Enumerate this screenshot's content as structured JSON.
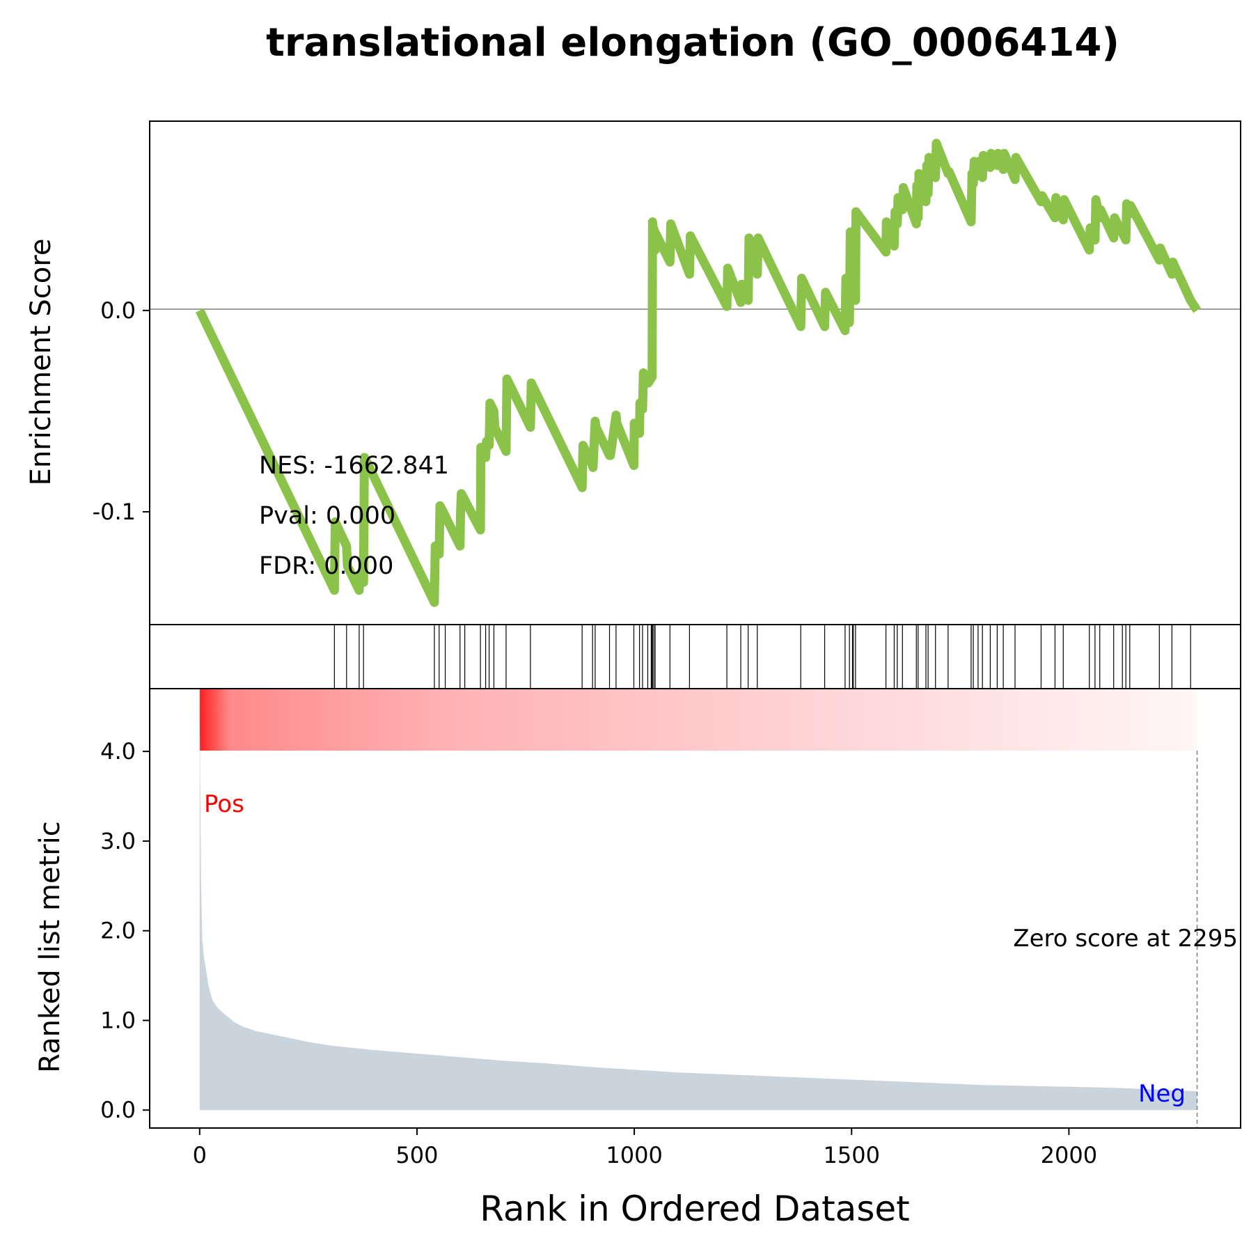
{
  "chart_data": {
    "type": "line",
    "title": "translational elongation (GO_0006414)",
    "n_genes": 2295,
    "xlabel": "Rank in Ordered Dataset",
    "xlim": [
      -115,
      2395
    ],
    "xticks": [
      0,
      500,
      1000,
      1500,
      2000
    ],
    "enrichment_panel": {
      "ylabel": "Enrichment Score",
      "ylim": [
        -0.156,
        0.094
      ],
      "yticks": [
        0.0,
        -0.1
      ],
      "ytick_labels": [
        "0.0",
        "-0.1"
      ],
      "line_color": "#8bc34a",
      "zero_line": true,
      "stats": [
        "NES: -1662.841",
        "Pval: 0.000",
        "FDR: 0.000"
      ],
      "es_curve": {
        "x": [
          0,
          310,
          312,
          338,
          340,
          367,
          368,
          377,
          379,
          386,
          540,
          542,
          551,
          553,
          565,
          567,
          599,
          600,
          602,
          610,
          612,
          646,
          647,
          658,
          660,
          666,
          668,
          677,
          679,
          705,
          707,
          761,
          763,
          880,
          882,
          904,
          905,
          910,
          912,
          943,
          945,
          958,
          960,
          999,
          1000,
          1012,
          1013,
          1019,
          1021,
          1031,
          1032,
          1041,
          1042,
          1045,
          1046,
          1048,
          1050,
          1082,
          1084,
          1127,
          1129,
          1213,
          1215,
          1245,
          1247,
          1262,
          1264,
          1283,
          1285,
          1383,
          1385,
          1438,
          1440,
          1485,
          1487,
          1495,
          1497,
          1502,
          1504,
          1509,
          1510,
          1579,
          1580,
          1598,
          1600,
          1605,
          1607,
          1617,
          1619,
          1649,
          1650,
          1653,
          1655,
          1671,
          1673,
          1676,
          1678,
          1693,
          1695,
          1722,
          1724,
          1775,
          1777,
          1780,
          1782,
          1791,
          1793,
          1801,
          1803,
          1819,
          1821,
          1835,
          1837,
          1849,
          1851,
          1876,
          1878,
          1936,
          1938,
          1968,
          1970,
          1987,
          1989,
          2047,
          2049,
          2060,
          2062,
          2071,
          2073,
          2103,
          2105,
          2131,
          2133,
          2140,
          2142,
          2208,
          2210,
          2237,
          2239,
          2280,
          2295
        ],
        "y": [
          0.0,
          -0.139,
          -0.105,
          -0.117,
          -0.127,
          -0.139,
          -0.131,
          -0.135,
          -0.073,
          -0.076,
          -0.145,
          -0.117,
          -0.121,
          -0.097,
          -0.102,
          -0.103,
          -0.117,
          -0.102,
          -0.091,
          -0.094,
          -0.095,
          -0.109,
          -0.068,
          -0.073,
          -0.065,
          -0.067,
          -0.046,
          -0.05,
          -0.058,
          -0.07,
          -0.034,
          -0.058,
          -0.036,
          -0.088,
          -0.067,
          -0.077,
          -0.078,
          -0.055,
          -0.058,
          -0.072,
          -0.072,
          -0.052,
          -0.056,
          -0.077,
          -0.056,
          -0.061,
          -0.046,
          -0.049,
          -0.031,
          -0.035,
          -0.036,
          -0.033,
          0.044,
          0.038,
          0.04,
          0.03,
          0.038,
          0.024,
          0.043,
          0.018,
          0.037,
          0.002,
          0.021,
          0.004,
          0.013,
          0.005,
          0.036,
          0.018,
          0.036,
          -0.008,
          0.016,
          -0.008,
          0.009,
          -0.01,
          0.016,
          -0.006,
          0.039,
          0.013,
          0.032,
          0.005,
          0.049,
          0.029,
          0.044,
          0.032,
          0.049,
          0.043,
          0.056,
          0.05,
          0.061,
          0.043,
          0.062,
          0.046,
          0.068,
          0.054,
          0.072,
          0.058,
          0.076,
          0.066,
          0.083,
          0.068,
          0.069,
          0.044,
          0.068,
          0.063,
          0.074,
          0.067,
          0.074,
          0.066,
          0.077,
          0.071,
          0.078,
          0.072,
          0.078,
          0.07,
          0.078,
          0.065,
          0.076,
          0.054,
          0.057,
          0.046,
          0.056,
          0.045,
          0.055,
          0.03,
          0.041,
          0.035,
          0.055,
          0.046,
          0.05,
          0.036,
          0.046,
          0.035,
          0.053,
          0.048,
          0.052,
          0.025,
          0.031,
          0.018,
          0.024,
          0.005,
          0.0
        ]
      }
    },
    "hits_panel": {
      "hit_ranks": [
        310,
        338,
        367,
        377,
        540,
        551,
        565,
        599,
        610,
        646,
        658,
        666,
        677,
        705,
        761,
        880,
        904,
        910,
        943,
        958,
        999,
        1012,
        1019,
        1031,
        1039,
        1041,
        1042,
        1045,
        1048,
        1082,
        1127,
        1213,
        1245,
        1262,
        1283,
        1383,
        1438,
        1485,
        1495,
        1502,
        1504,
        1509,
        1579,
        1598,
        1605,
        1617,
        1649,
        1653,
        1671,
        1676,
        1693,
        1722,
        1775,
        1780,
        1791,
        1801,
        1819,
        1835,
        1849,
        1876,
        1936,
        1968,
        1987,
        2047,
        2060,
        2071,
        2103,
        2123,
        2131,
        2140,
        2208,
        2237,
        2280
      ]
    },
    "metric_panel": {
      "ylabel": "Ranked list metric",
      "ylim": [
        -0.2,
        4.7
      ],
      "yticks": [
        0.0,
        1.0,
        2.0,
        3.0,
        4.0
      ],
      "ytick_labels": [
        "0.0",
        "1.0",
        "2.0",
        "3.0",
        "4.0"
      ],
      "fill_color": "#c9d4dd",
      "curve": {
        "x": [
          0,
          3,
          6,
          10,
          15,
          20,
          25,
          30,
          40,
          50,
          60,
          70,
          80,
          100,
          130,
          160,
          200,
          250,
          300,
          400,
          500,
          600,
          700,
          800,
          900,
          1000,
          1100,
          1200,
          1300,
          1400,
          1500,
          1600,
          1700,
          1800,
          1900,
          2000,
          2100,
          2200,
          2295
        ],
        "y": [
          4.45,
          2.6,
          1.9,
          1.7,
          1.55,
          1.4,
          1.3,
          1.22,
          1.15,
          1.1,
          1.06,
          1.02,
          0.98,
          0.93,
          0.88,
          0.85,
          0.81,
          0.76,
          0.72,
          0.67,
          0.63,
          0.59,
          0.55,
          0.52,
          0.48,
          0.45,
          0.42,
          0.4,
          0.38,
          0.36,
          0.34,
          0.32,
          0.3,
          0.28,
          0.27,
          0.26,
          0.25,
          0.23,
          0.21
        ]
      },
      "pos_label": "Pos",
      "neg_label": "Neg",
      "pos_color": "#ff0000",
      "neg_color": "#0000ff",
      "zero_score_label": "Zero score at 2295",
      "zero_score_rank": 2295
    },
    "gradient_bar": {
      "from_color": "#ff2020",
      "to_color": "#fff6f6"
    }
  }
}
